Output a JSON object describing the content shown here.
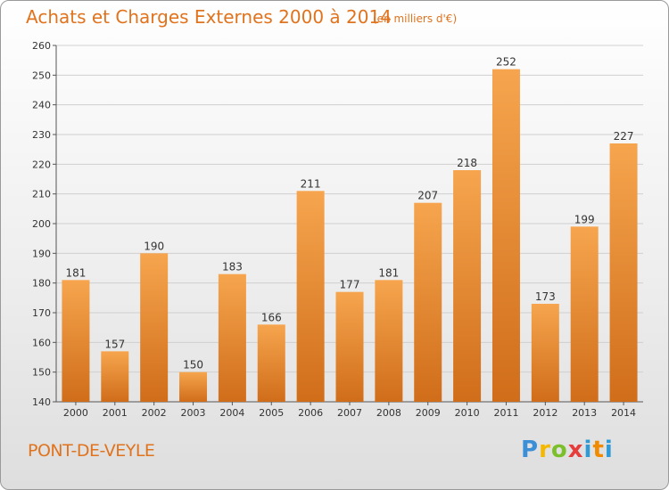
{
  "header": {
    "title": "Achats et Charges Externes 2000 à 2014",
    "unit": "(en milliers d'€)"
  },
  "footer": {
    "place": "PONT-DE-VEYLE",
    "logo_letters": [
      "P",
      "r",
      "o",
      "x",
      "i",
      "t",
      "i"
    ]
  },
  "colors": {
    "bar_top": "#f6a54e",
    "bar_bottom": "#d06d1a",
    "title": "#e0731e"
  },
  "chart_data": {
    "type": "bar",
    "title": "Achats et Charges Externes 2000 à 2014",
    "categories": [
      "2000",
      "2001",
      "2002",
      "2003",
      "2004",
      "2005",
      "2006",
      "2007",
      "2008",
      "2009",
      "2010",
      "2011",
      "2012",
      "2013",
      "2014"
    ],
    "values": [
      181,
      157,
      190,
      150,
      183,
      166,
      211,
      177,
      181,
      207,
      218,
      252,
      173,
      199,
      227
    ],
    "ylim": [
      140,
      260
    ],
    "yticks": [
      140,
      150,
      160,
      170,
      180,
      190,
      200,
      210,
      220,
      230,
      240,
      250,
      260
    ],
    "grid": true,
    "data_labels": true
  }
}
